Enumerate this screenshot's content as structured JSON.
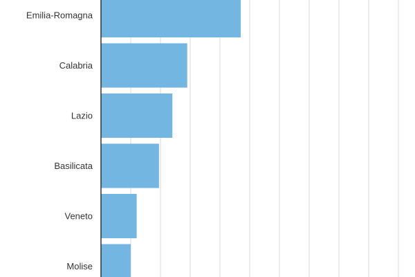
{
  "chart_data": {
    "type": "bar",
    "orientation": "horizontal",
    "categories": [
      "Emilia-Romagna",
      "Calabria",
      "Lazio",
      "Basilicata",
      "Veneto",
      "Molise"
    ],
    "values": [
      47,
      29,
      24,
      19.5,
      12,
      10
    ],
    "xlim": [
      0,
      105
    ],
    "grid": true,
    "color": "#74b6e2",
    "grid_color": "#d9d9d9",
    "axis_color": "#333333"
  }
}
